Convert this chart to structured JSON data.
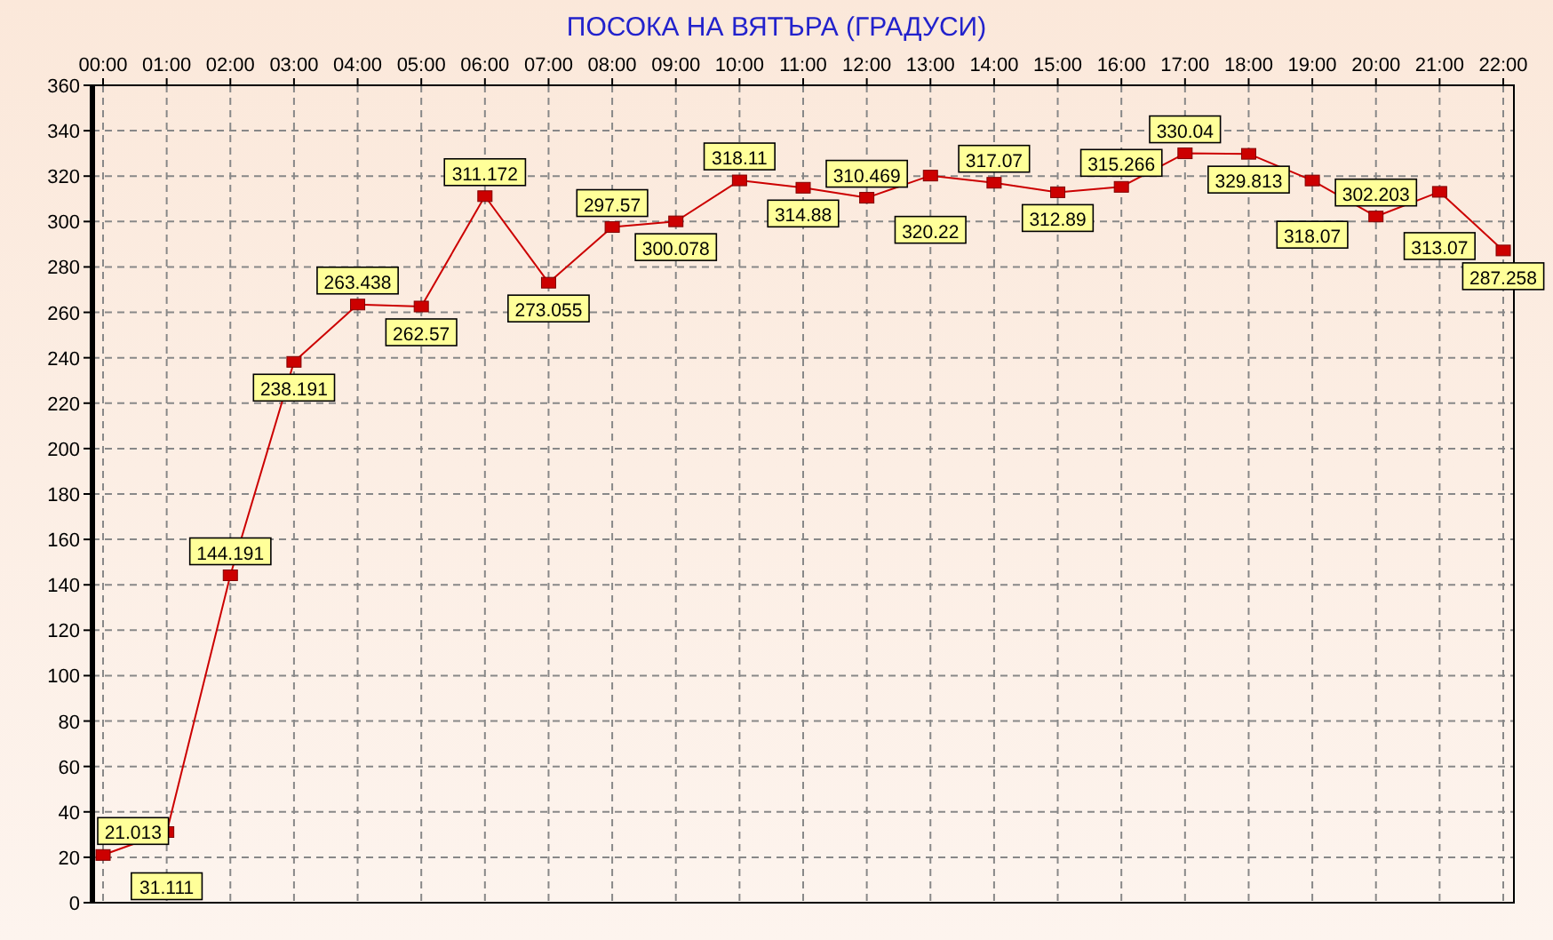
{
  "chart_data": {
    "type": "line",
    "title": "ПОСОКА НА ВЯТЪРА    (ГРАДУСИ)",
    "categories": [
      "00:00",
      "01:00",
      "02:00",
      "03:00",
      "04:00",
      "05:00",
      "06:00",
      "07:00",
      "08:00",
      "09:00",
      "10:00",
      "11:00",
      "12:00",
      "13:00",
      "14:00",
      "15:00",
      "16:00",
      "17:00",
      "18:00",
      "19:00",
      "20:00",
      "21:00",
      "22:00"
    ],
    "series": [
      {
        "color": "#cc0000",
        "values": [
          21.013,
          31.111,
          144.191,
          238.191,
          263.438,
          262.57,
          311.172,
          273.055,
          297.57,
          300.078,
          318.11,
          314.88,
          310.469,
          320.22,
          317.07,
          312.89,
          315.266,
          330.04,
          329.813,
          318.07,
          302.203,
          313.07,
          287.258
        ]
      }
    ],
    "ylim": [
      0,
      360
    ],
    "yticks": [
      0,
      20,
      40,
      60,
      80,
      100,
      120,
      140,
      160,
      180,
      200,
      220,
      240,
      260,
      280,
      300,
      320,
      340,
      360
    ],
    "grid": true,
    "marker": "square",
    "line_style": "solid",
    "data_labels": true
  }
}
